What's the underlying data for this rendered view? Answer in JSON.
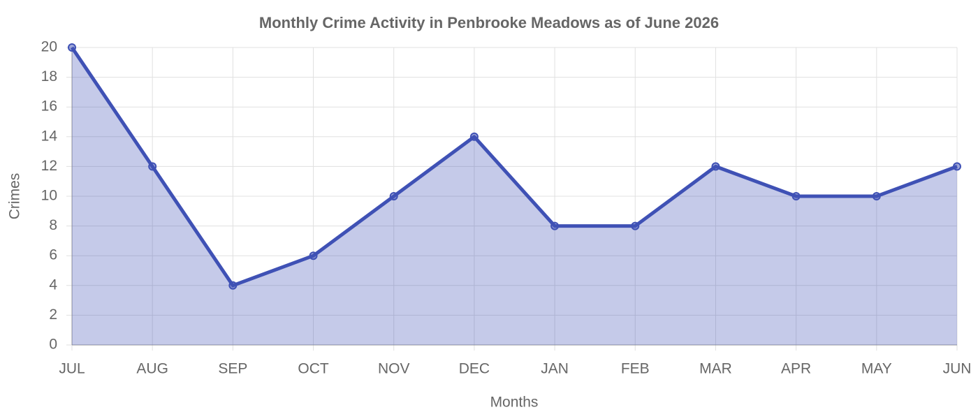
{
  "chart_data": {
    "type": "area",
    "title": "Monthly Crime Activity in Penbrooke Meadows as of June 2026",
    "x_label": "Months",
    "y_label": "Crimes",
    "categories": [
      "JUL",
      "AUG",
      "SEP",
      "OCT",
      "NOV",
      "DEC",
      "JAN",
      "FEB",
      "MAR",
      "APR",
      "MAY",
      "JUN"
    ],
    "values": [
      20,
      12,
      4,
      6,
      10,
      14,
      8,
      8,
      12,
      10,
      10,
      12
    ],
    "color": "#3f51b5",
    "ylim": [
      0,
      20
    ],
    "yticks": [
      0,
      2,
      4,
      6,
      8,
      10,
      12,
      14,
      16,
      18,
      20
    ],
    "grid": true
  }
}
